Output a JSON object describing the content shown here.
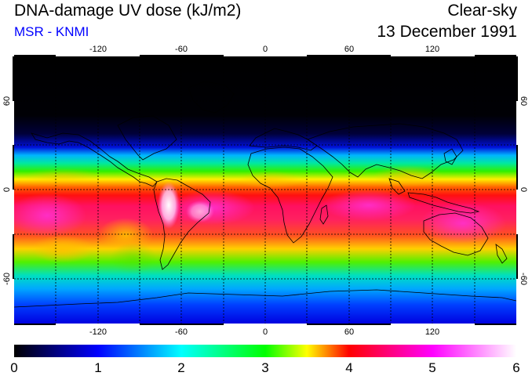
{
  "header": {
    "title": "DNA-damage UV dose (kJ/m2)",
    "source": "MSR - KNMI",
    "condition": "Clear-sky",
    "date": "13 December 1991"
  },
  "map": {
    "projection": "equirectangular",
    "lon_range": [
      -180,
      180
    ],
    "lat_range": [
      -90,
      90
    ],
    "lon_ticks": [
      "-120",
      "-60",
      "0",
      "60",
      "120"
    ],
    "lat_ticks_left": [
      "60",
      "0",
      "-60"
    ],
    "lat_ticks_right": [
      "60",
      "0",
      "-60"
    ]
  },
  "colorbar": {
    "min": 0,
    "max": 6,
    "labels": [
      "0",
      "1",
      "2",
      "3",
      "4",
      "5",
      "6"
    ],
    "stops": [
      "#000000",
      "#0000ff",
      "#00ffff",
      "#00ff00",
      "#ffff00",
      "#ff0000",
      "#ff00ff",
      "#ffffff"
    ]
  }
}
